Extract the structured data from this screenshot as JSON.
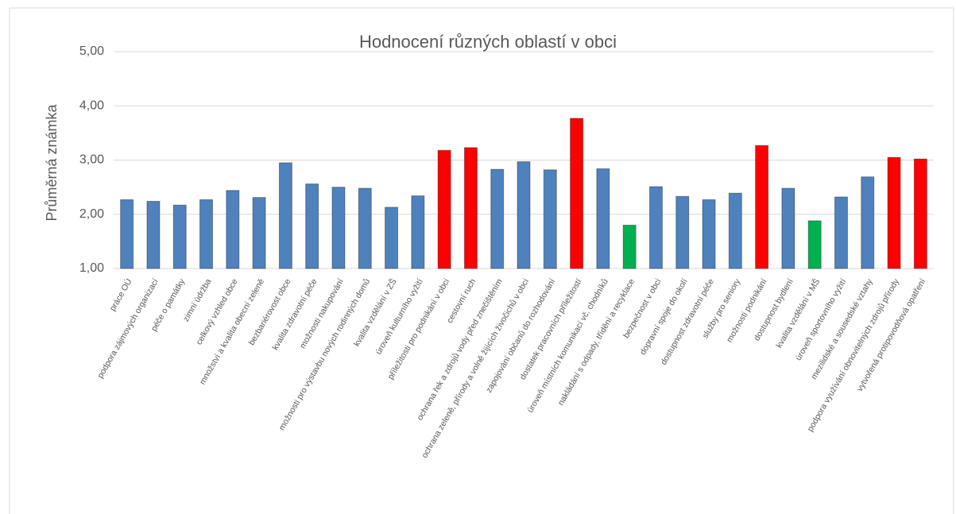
{
  "chart_data": {
    "type": "bar",
    "title": "Hodnocení různých oblastí v obci",
    "y_label": "Průměrná známka",
    "categories": [
      "práce OÚ",
      "podpora zájmových organizací",
      "péče o památky",
      "zimní údržba",
      "celkový vzhled obce",
      "množství a kvalita obecní zeleně",
      "bezbariérovost obce",
      "kvalita zdravotní péče",
      "možnosti nakupování",
      "možnosti pro výstavbu nových rodinných domů",
      "kvalita vzdělání v ZŠ",
      "úroveň kulturního vyžití",
      "příležitosti pro podnikání v obci",
      "cestovní ruch",
      "ochrana řek a zdrojů vody před znečištěním",
      "ochrana zeleně, přírody a volně žijících živočichů v obci",
      "zapojování občanů do rozhodování",
      "dostatek pracovních příležitostí",
      "úroveň místních komunikací vč. chodníků",
      "nakládání s odpady, třídění a recyklace",
      "bezpečnost v obci",
      "dopravní spoje do okolí",
      "dostupnost zdravotní péče",
      "služby pro seniory",
      "možnosti podnikání",
      "dostupnost bydlení",
      "kvalita vzdělání v MŠ",
      "úroveň sportovního vyžití",
      "mezilidské a sousedské vztahy",
      "podpora využívání obnovitelných zdrojů přírody",
      "vytvořená protipovodňová opatření"
    ],
    "values": [
      2.27,
      2.24,
      2.17,
      2.27,
      2.44,
      2.31,
      2.95,
      2.56,
      2.5,
      2.48,
      2.13,
      2.34,
      3.18,
      3.23,
      2.83,
      2.97,
      2.82,
      3.77,
      2.84,
      1.8,
      2.51,
      2.33,
      2.27,
      2.39,
      3.27,
      2.48,
      1.88,
      2.32,
      2.69,
      3.05,
      3.02
    ],
    "colors": [
      "#4f81bd",
      "#4f81bd",
      "#4f81bd",
      "#4f81bd",
      "#4f81bd",
      "#4f81bd",
      "#4f81bd",
      "#4f81bd",
      "#4f81bd",
      "#4f81bd",
      "#4f81bd",
      "#4f81bd",
      "#ff0000",
      "#ff0000",
      "#4f81bd",
      "#4f81bd",
      "#4f81bd",
      "#ff0000",
      "#4f81bd",
      "#00b050",
      "#4f81bd",
      "#4f81bd",
      "#4f81bd",
      "#4f81bd",
      "#ff0000",
      "#4f81bd",
      "#00b050",
      "#4f81bd",
      "#4f81bd",
      "#ff0000",
      "#ff0000"
    ],
    "ylim": [
      1,
      5
    ],
    "yticks": [
      {
        "value": 1,
        "label": "1,00"
      },
      {
        "value": 2,
        "label": "2,00"
      },
      {
        "value": 3,
        "label": "3,00"
      },
      {
        "value": 4,
        "label": "4,00"
      },
      {
        "value": 5,
        "label": "5,00"
      }
    ],
    "grid": true
  }
}
